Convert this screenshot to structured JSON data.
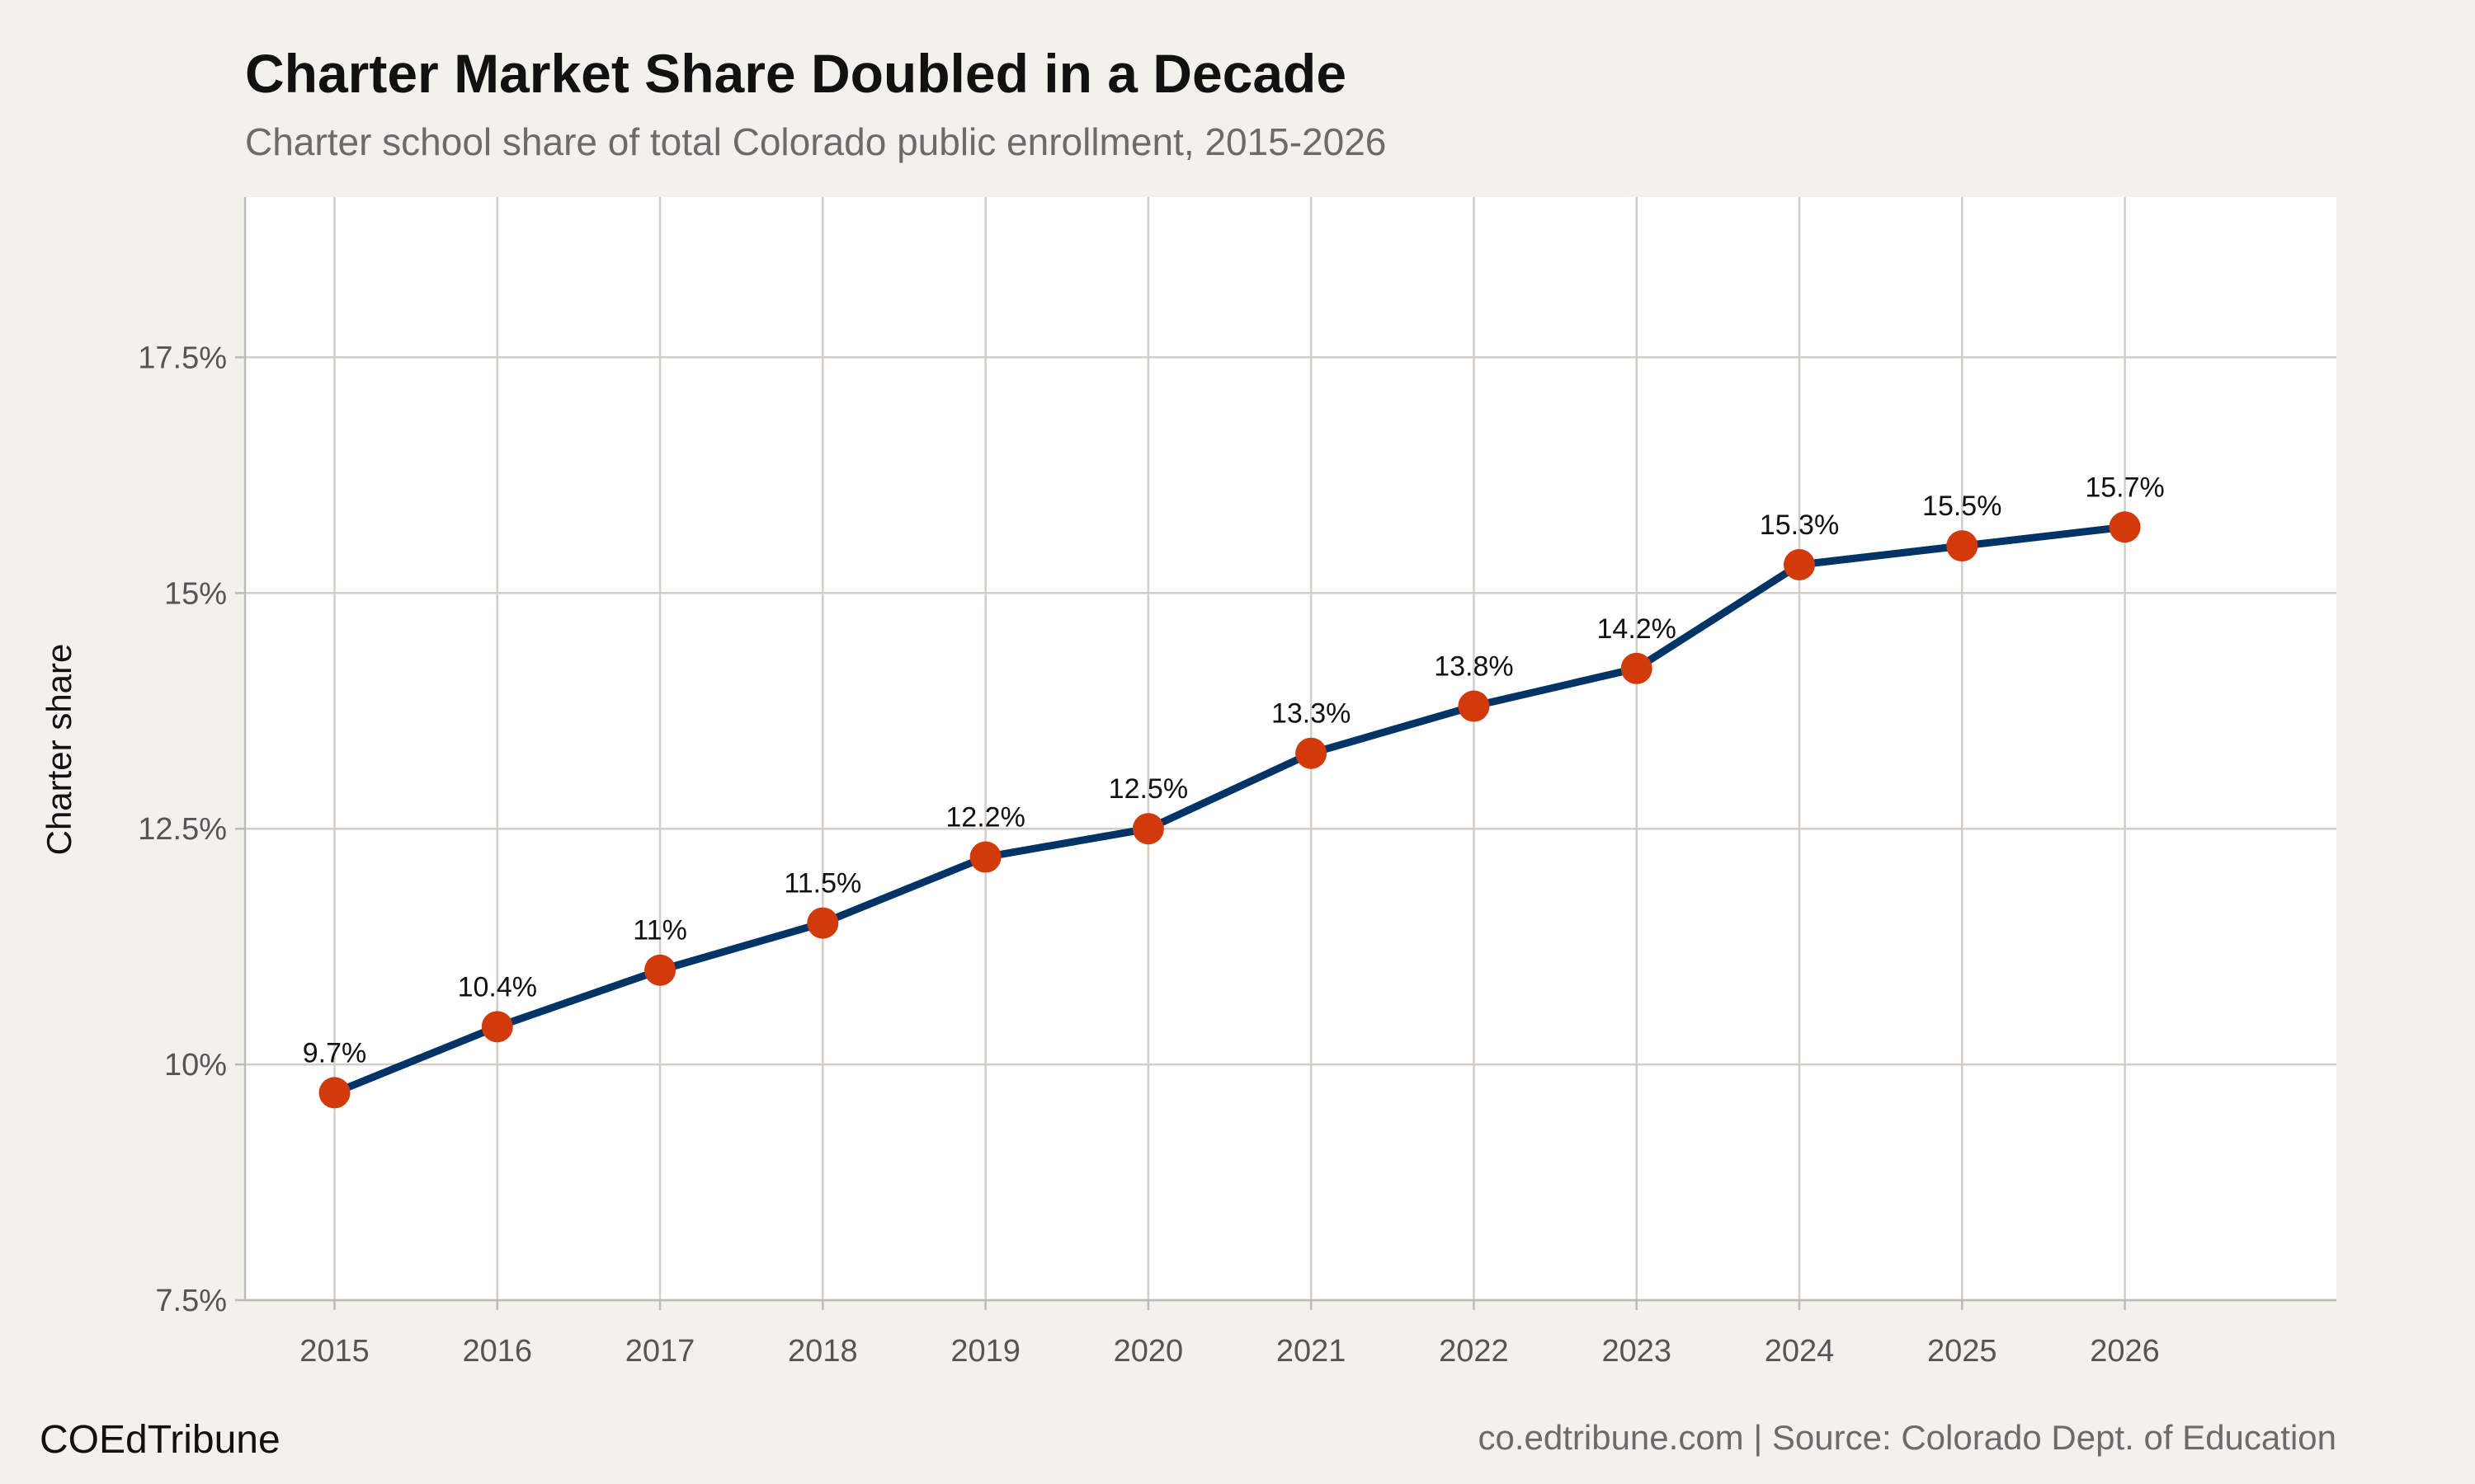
{
  "chart_data": {
    "type": "line",
    "title": "Charter Market Share Doubled in a Decade",
    "subtitle": "Charter school share of total Colorado public enrollment, 2015-2026",
    "xlabel": "",
    "ylabel": "Charter share",
    "x": [
      2015,
      2016,
      2017,
      2018,
      2019,
      2020,
      2021,
      2022,
      2023,
      2024,
      2025,
      2026
    ],
    "series": [
      {
        "values": [
          9.7,
          10.4,
          11,
          11.5,
          12.2,
          12.5,
          13.3,
          13.8,
          14.2,
          15.3,
          15.5,
          15.7
        ]
      }
    ],
    "data_labels": [
      "9.7%",
      "10.4%",
      "11%",
      "11.5%",
      "12.2%",
      "12.5%",
      "13.3%",
      "13.8%",
      "14.2%",
      "15.3%",
      "15.5%",
      "15.7%"
    ],
    "xticks": [
      "2015",
      "2016",
      "2017",
      "2018",
      "2019",
      "2020",
      "2021",
      "2022",
      "2023",
      "2024",
      "2025",
      "2026"
    ],
    "yticks": [
      7.5,
      10,
      12.5,
      15,
      17.5
    ],
    "ytick_labels": [
      "7.5%",
      "10%",
      "12.5%",
      "15%",
      "17.5%"
    ],
    "xlim": [
      2014.45,
      2027.3
    ],
    "ylim": [
      7.5,
      19.2
    ],
    "grid": true,
    "colors": {
      "line": "#003366",
      "points": "#d13a0a",
      "grid": "#d2cec6",
      "panel": "#ffffff",
      "background": "#f4f1ec"
    }
  },
  "footer": {
    "brand": "COEdTribune",
    "source": "co.edtribune.com | Source: Colorado Dept. of Education"
  }
}
